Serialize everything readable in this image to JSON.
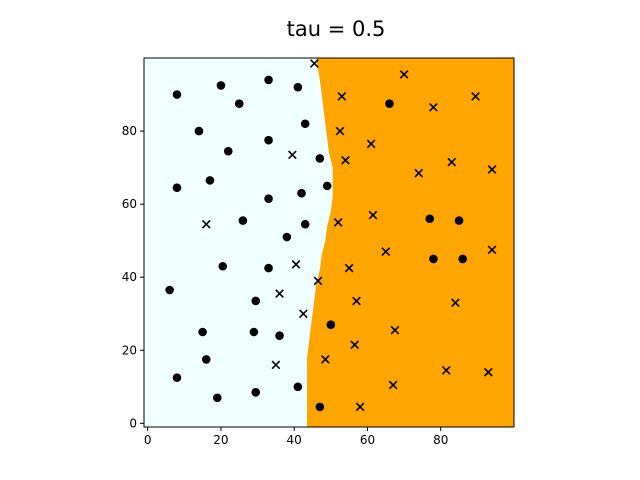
{
  "chart_data": {
    "type": "scatter",
    "title": "tau = 0.5",
    "xlabel": "",
    "ylabel": "",
    "xlim": [
      -1,
      100
    ],
    "ylim": [
      -1,
      100
    ],
    "xticks": [
      0,
      20,
      40,
      60,
      80
    ],
    "yticks": [
      0,
      20,
      40,
      60,
      80
    ],
    "grid": false,
    "colors": {
      "region_left": "#f0ffff",
      "region_right": "#ffa500",
      "marker": "#000000"
    },
    "decision_boundary": {
      "description_points": [
        [
          43.5,
          -1
        ],
        [
          43.5,
          18
        ],
        [
          44,
          22
        ],
        [
          44.5,
          26
        ],
        [
          45,
          30
        ],
        [
          45.5,
          34
        ],
        [
          46,
          38
        ],
        [
          47,
          42
        ],
        [
          47.5,
          46
        ],
        [
          48.5,
          50
        ],
        [
          49,
          54
        ],
        [
          50,
          58
        ],
        [
          50.5,
          62
        ],
        [
          50.5,
          66
        ],
        [
          50.5,
          70
        ],
        [
          49.5,
          74
        ],
        [
          49,
          78
        ],
        [
          48.5,
          82
        ],
        [
          48,
          86
        ],
        [
          47.5,
          90
        ],
        [
          47,
          94
        ],
        [
          46.5,
          97
        ],
        [
          46,
          100
        ]
      ]
    },
    "series": [
      {
        "name": "",
        "marker": "circle",
        "points": [
          [
            8,
            90
          ],
          [
            20,
            92.5
          ],
          [
            25,
            87.5
          ],
          [
            33,
            94
          ],
          [
            41,
            92
          ],
          [
            14,
            80
          ],
          [
            22,
            74.5
          ],
          [
            33,
            77.5
          ],
          [
            43,
            82
          ],
          [
            47,
            72.5
          ],
          [
            8,
            64.5
          ],
          [
            17,
            66.5
          ],
          [
            33,
            61.5
          ],
          [
            42,
            63
          ],
          [
            49,
            65
          ],
          [
            26,
            55.5
          ],
          [
            38,
            51
          ],
          [
            43,
            54.5
          ],
          [
            20.5,
            43
          ],
          [
            33,
            42.5
          ],
          [
            6,
            36.5
          ],
          [
            29.5,
            33.5
          ],
          [
            15,
            25
          ],
          [
            29,
            25
          ],
          [
            36,
            24
          ],
          [
            50,
            27
          ],
          [
            16,
            17.5
          ],
          [
            8,
            12.5
          ],
          [
            41,
            10
          ],
          [
            19,
            7
          ],
          [
            29.5,
            8.5
          ],
          [
            47,
            4.5
          ],
          [
            66,
            87.5
          ],
          [
            77,
            56
          ],
          [
            85,
            55.5
          ],
          [
            78,
            45
          ],
          [
            86,
            45
          ]
        ]
      },
      {
        "name": "",
        "marker": "x",
        "points": [
          [
            45.5,
            98.5
          ],
          [
            70,
            95.5
          ],
          [
            53,
            89.5
          ],
          [
            78,
            86.5
          ],
          [
            89.5,
            89.5
          ],
          [
            52.5,
            80
          ],
          [
            61,
            76.5
          ],
          [
            39.5,
            73.5
          ],
          [
            54,
            72
          ],
          [
            74,
            68.5
          ],
          [
            83,
            71.5
          ],
          [
            94,
            69.5
          ],
          [
            16,
            54.5
          ],
          [
            52,
            55
          ],
          [
            61.5,
            57
          ],
          [
            65,
            47
          ],
          [
            94,
            47.5
          ],
          [
            40.5,
            43.5
          ],
          [
            55,
            42.5
          ],
          [
            46.5,
            39
          ],
          [
            36,
            35.5
          ],
          [
            57,
            33.5
          ],
          [
            84,
            33
          ],
          [
            42.5,
            30
          ],
          [
            67.5,
            25.5
          ],
          [
            56.5,
            21.5
          ],
          [
            48.5,
            17.5
          ],
          [
            35,
            16
          ],
          [
            67,
            10.5
          ],
          [
            81.5,
            14.5
          ],
          [
            93,
            14
          ],
          [
            58,
            4.5
          ]
        ]
      }
    ]
  }
}
